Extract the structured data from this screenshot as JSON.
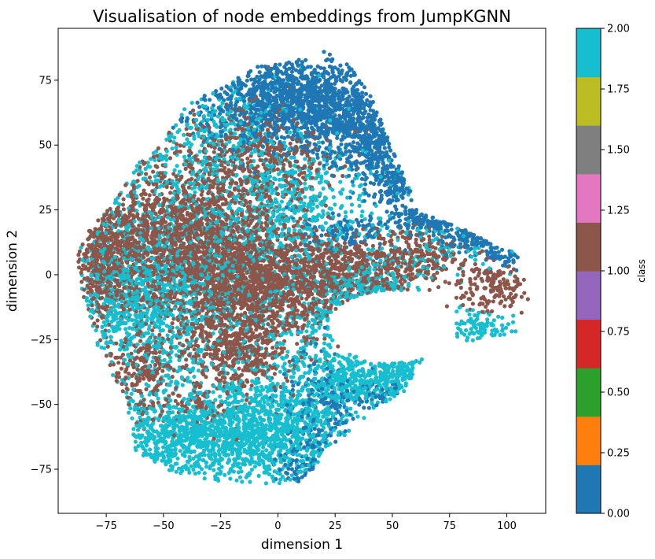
{
  "chart_data": {
    "type": "scatter",
    "title": "Visualisation of node embeddings from JumpKGNN",
    "xlabel": "dimension 1",
    "ylabel": "dimension 2",
    "xlim": [
      -96,
      117
    ],
    "ylim": [
      -92,
      95
    ],
    "xticks": [
      -75,
      -50,
      -25,
      0,
      25,
      50,
      75,
      100
    ],
    "xtick_labels": [
      "−75",
      "−50",
      "−25",
      "0",
      "25",
      "50",
      "75",
      "100"
    ],
    "yticks": [
      -75,
      -50,
      -25,
      0,
      25,
      50,
      75
    ],
    "ytick_labels": [
      "−75",
      "−50",
      "−25",
      "0",
      "25",
      "50",
      "75"
    ],
    "grid": false,
    "colorbar": {
      "label": "class",
      "range": [
        0,
        2
      ],
      "ticks": [
        0.0,
        0.25,
        0.5,
        0.75,
        1.0,
        1.25,
        1.5,
        1.75,
        2.0
      ],
      "tick_labels": [
        "0.00",
        "0.25",
        "0.50",
        "0.75",
        "1.00",
        "1.25",
        "1.50",
        "1.75",
        "2.00"
      ],
      "colors": [
        "#1f77b4",
        "#ff7f0e",
        "#2ca02c",
        "#d62728",
        "#9467bd",
        "#8c564b",
        "#e377c2",
        "#7f7f7f",
        "#bcbd22",
        "#17becf"
      ]
    },
    "classes": [
      {
        "value": 0,
        "color": "#1f77b4",
        "clusters": [
          {
            "cx": 12,
            "cy": 66,
            "sx": 22,
            "sy": 10,
            "n": 1500
          },
          {
            "cx": 40,
            "cy": 52,
            "sx": 9,
            "sy": 8,
            "n": 300
          },
          {
            "cx": 52,
            "cy": 36,
            "sx": 6,
            "sy": 5,
            "n": 140
          },
          {
            "cx": 65,
            "cy": 22,
            "sx": 7,
            "sy": 3,
            "n": 110
          },
          {
            "cx": 85,
            "cy": 15,
            "sx": 7,
            "sy": 3,
            "n": 100
          },
          {
            "cx": 98,
            "cy": 8,
            "sx": 4,
            "sy": 3,
            "n": 50
          },
          {
            "cx": 30,
            "cy": 17,
            "sx": 10,
            "sy": 4,
            "n": 120
          },
          {
            "cx": 18,
            "cy": -55,
            "sx": 10,
            "sy": 12,
            "n": 200
          },
          {
            "cx": 42,
            "cy": -47,
            "sx": 8,
            "sy": 3,
            "n": 60
          },
          {
            "cx": 10,
            "cy": -75,
            "sx": 5,
            "sy": 5,
            "n": 50
          }
        ]
      },
      {
        "value": 1,
        "color": "#8c564b",
        "clusters": [
          {
            "cx": -40,
            "cy": 15,
            "sx": 22,
            "sy": 14,
            "n": 1600
          },
          {
            "cx": -15,
            "cy": -5,
            "sx": 20,
            "sy": 12,
            "n": 1300
          },
          {
            "cx": -75,
            "cy": 5,
            "sx": 7,
            "sy": 12,
            "n": 450
          },
          {
            "cx": 20,
            "cy": 0,
            "sx": 14,
            "sy": 8,
            "n": 550
          },
          {
            "cx": 55,
            "cy": 5,
            "sx": 14,
            "sy": 6,
            "n": 320
          },
          {
            "cx": 90,
            "cy": -5,
            "sx": 10,
            "sy": 4,
            "n": 160
          },
          {
            "cx": -20,
            "cy": -30,
            "sx": 12,
            "sy": 6,
            "n": 350
          },
          {
            "cx": -10,
            "cy": 45,
            "sx": 18,
            "sy": 10,
            "n": 450
          },
          {
            "cx": -60,
            "cy": -35,
            "sx": 8,
            "sy": 6,
            "n": 150
          },
          {
            "cx": -40,
            "cy": -50,
            "sx": 15,
            "sy": 6,
            "n": 150
          }
        ]
      },
      {
        "value": 2,
        "color": "#17becf",
        "clusters": [
          {
            "cx": -28,
            "cy": -62,
            "sx": 26,
            "sy": 9,
            "n": 1300
          },
          {
            "cx": 5,
            "cy": -55,
            "sx": 16,
            "sy": 15,
            "n": 500
          },
          {
            "cx": 25,
            "cy": -42,
            "sx": 8,
            "sy": 8,
            "n": 160
          },
          {
            "cx": 50,
            "cy": -40,
            "sx": 14,
            "sy": 6,
            "n": 300
          },
          {
            "cx": -60,
            "cy": -10,
            "sx": 16,
            "sy": 14,
            "n": 700
          },
          {
            "cx": -25,
            "cy": 10,
            "sx": 32,
            "sy": 28,
            "n": 1400
          },
          {
            "cx": 40,
            "cy": -15,
            "sx": 12,
            "sy": 8,
            "n": 220
          },
          {
            "cx": 85,
            "cy": -20,
            "sx": 10,
            "sy": 3,
            "n": 90
          },
          {
            "cx": -20,
            "cy": 55,
            "sx": 14,
            "sy": 8,
            "n": 200
          },
          {
            "cx": 5,
            "cy": 30,
            "sx": 20,
            "sy": 10,
            "n": 300
          },
          {
            "cx": 60,
            "cy": 10,
            "sx": 20,
            "sy": 10,
            "n": 150
          }
        ]
      }
    ]
  }
}
